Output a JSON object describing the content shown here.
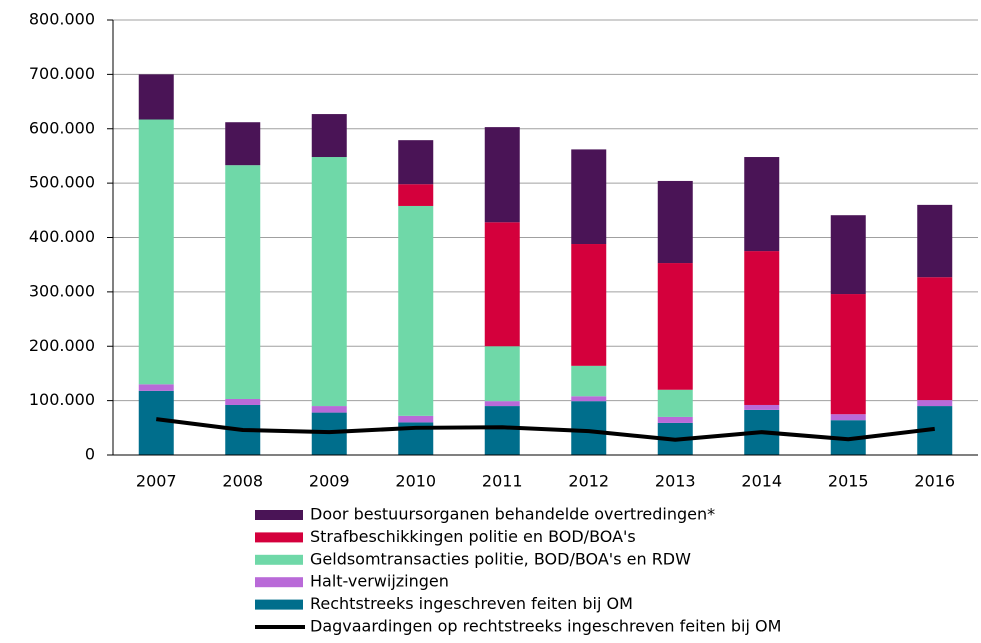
{
  "chart_data": {
    "type": "bar",
    "stacked": true,
    "categories": [
      "2007",
      "2008",
      "2009",
      "2010",
      "2011",
      "2012",
      "2013",
      "2014",
      "2015",
      "2016"
    ],
    "series": [
      {
        "name": "Rechtstreeks ingeschreven feiten bij OM",
        "color": "#006e8c",
        "values": [
          118000,
          92000,
          78000,
          60000,
          90000,
          99000,
          59000,
          83000,
          64000,
          90000
        ]
      },
      {
        "name": "Halt-verwijzingen",
        "color": "#b96ad8",
        "values": [
          12000,
          11000,
          12000,
          12000,
          9000,
          9000,
          11000,
          9000,
          11000,
          11000
        ]
      },
      {
        "name": "Geldsomtransacties politie, BOD/BOA's en RDW",
        "color": "#6fd8a8",
        "values": [
          487000,
          430000,
          458000,
          386000,
          101000,
          56000,
          50000,
          0,
          0,
          0
        ]
      },
      {
        "name": "Strafbeschikkingen politie en BOD/BOA's",
        "color": "#d4003c",
        "values": [
          0,
          0,
          0,
          40000,
          228000,
          224000,
          233000,
          283000,
          221000,
          226000
        ]
      },
      {
        "name": "Door bestuursorganen behandelde overtredingen*",
        "color": "#4a1456",
        "values": [
          83000,
          79000,
          79000,
          81000,
          175000,
          174000,
          151000,
          173000,
          145000,
          133000
        ]
      },
      {
        "name": "Dagvaardingen op rechtstreeks ingeschreven feiten bij OM",
        "type": "line",
        "color": "#000000",
        "values": [
          66000,
          46000,
          42000,
          50000,
          51000,
          44000,
          28000,
          42000,
          29000,
          48000
        ]
      }
    ],
    "ylim": [
      0,
      800000
    ],
    "yticks": [
      0,
      {
        "value": 100000,
        "label": "100.000"
      },
      {
        "value": 200000,
        "label": "200.000"
      },
      {
        "value": 300000,
        "label": "300.000"
      },
      {
        "value": 400000,
        "label": "400.000"
      },
      {
        "value": 500000,
        "label": "500.000"
      },
      {
        "value": 600000,
        "label": "600.000"
      },
      {
        "value": 700000,
        "label": "700.000"
      },
      {
        "value": 800000,
        "label": "800.000"
      }
    ],
    "grid": true
  }
}
